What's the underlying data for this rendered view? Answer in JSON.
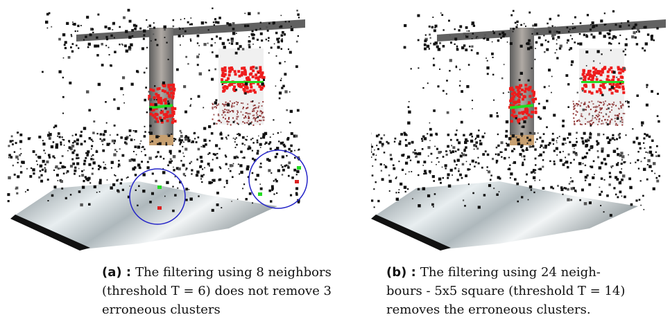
{
  "figures": [
    {
      "label": "(a) :",
      "lines": [
        "The filtering using 8 neighbors",
        "(threshold T = 6) does not remove 3",
        "erroneous clusters"
      ]
    },
    {
      "label": "(b) :",
      "lines": [
        "The filtering using 24 neigh-",
        "bours - 5x5 square (threshold T = 14)",
        "removes the erroneous clusters."
      ]
    }
  ]
}
